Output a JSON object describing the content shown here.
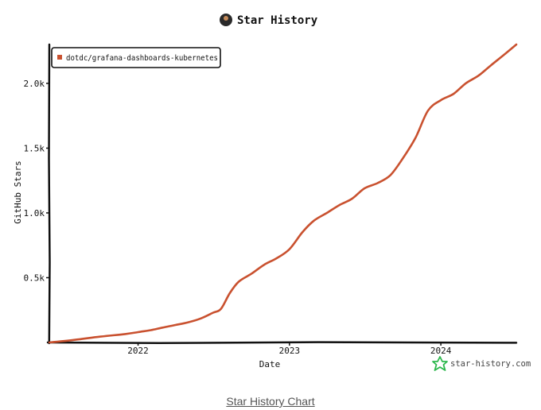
{
  "header": {
    "title": "Star History",
    "avatar_icon": "avatar-icon"
  },
  "caption": {
    "link_text": "Star History Chart"
  },
  "watermark": {
    "text": "star-history.com",
    "icon": "star-logo-icon",
    "color": "#2db84d"
  },
  "chart_data": {
    "type": "line",
    "title": "Star History",
    "xlabel": "Date",
    "ylabel": "GitHub Stars",
    "xlim": [
      "2021-06-01",
      "2024-07-01"
    ],
    "ylim": [
      0,
      2300
    ],
    "x_ticks": [
      {
        "label": "2022",
        "date": "2022-01-01"
      },
      {
        "label": "2023",
        "date": "2023-01-01"
      },
      {
        "label": "2024",
        "date": "2024-01-01"
      }
    ],
    "y_ticks": [
      {
        "label": "0.5k",
        "value": 500
      },
      {
        "label": "1.0k",
        "value": 1000
      },
      {
        "label": "1.5k",
        "value": 1500
      },
      {
        "label": "2.0k",
        "value": 2000
      }
    ],
    "legend_position": "top-left",
    "grid": false,
    "series": [
      {
        "name": "dotdc/grafana-dashboards-kubernetes",
        "color": "#c9512f",
        "points": [
          {
            "date": "2021-06-01",
            "value": 0
          },
          {
            "date": "2021-08-01",
            "value": 20
          },
          {
            "date": "2021-10-01",
            "value": 45
          },
          {
            "date": "2021-12-01",
            "value": 65
          },
          {
            "date": "2022-01-01",
            "value": 80
          },
          {
            "date": "2022-02-01",
            "value": 95
          },
          {
            "date": "2022-03-01",
            "value": 115
          },
          {
            "date": "2022-04-01",
            "value": 135
          },
          {
            "date": "2022-05-01",
            "value": 155
          },
          {
            "date": "2022-06-01",
            "value": 185
          },
          {
            "date": "2022-07-01",
            "value": 230
          },
          {
            "date": "2022-07-20",
            "value": 260
          },
          {
            "date": "2022-08-10",
            "value": 380
          },
          {
            "date": "2022-09-01",
            "value": 470
          },
          {
            "date": "2022-10-01",
            "value": 530
          },
          {
            "date": "2022-11-01",
            "value": 600
          },
          {
            "date": "2022-12-01",
            "value": 650
          },
          {
            "date": "2023-01-01",
            "value": 720
          },
          {
            "date": "2023-02-01",
            "value": 850
          },
          {
            "date": "2023-03-01",
            "value": 940
          },
          {
            "date": "2023-04-01",
            "value": 1000
          },
          {
            "date": "2023-05-01",
            "value": 1060
          },
          {
            "date": "2023-06-01",
            "value": 1110
          },
          {
            "date": "2023-07-01",
            "value": 1190
          },
          {
            "date": "2023-08-01",
            "value": 1230
          },
          {
            "date": "2023-09-01",
            "value": 1290
          },
          {
            "date": "2023-10-01",
            "value": 1420
          },
          {
            "date": "2023-11-01",
            "value": 1580
          },
          {
            "date": "2023-12-01",
            "value": 1790
          },
          {
            "date": "2024-01-01",
            "value": 1870
          },
          {
            "date": "2024-02-01",
            "value": 1920
          },
          {
            "date": "2024-03-01",
            "value": 2000
          },
          {
            "date": "2024-04-01",
            "value": 2060
          },
          {
            "date": "2024-05-01",
            "value": 2140
          },
          {
            "date": "2024-06-01",
            "value": 2220
          },
          {
            "date": "2024-07-01",
            "value": 2300
          }
        ]
      }
    ]
  }
}
